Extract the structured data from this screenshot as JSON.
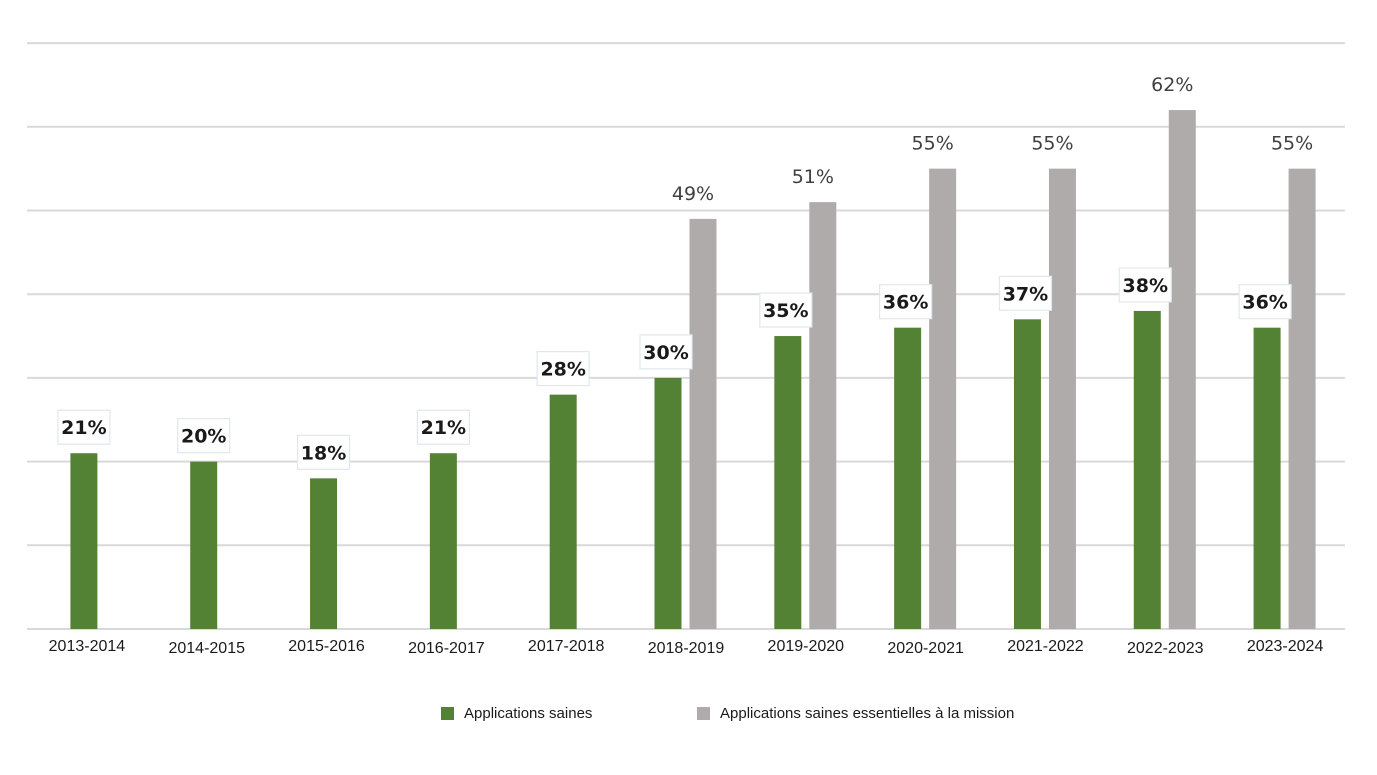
{
  "chart_data": {
    "type": "bar",
    "title": "",
    "xlabel": "",
    "ylabel": "",
    "ylim": [
      0,
      70
    ],
    "grid": true,
    "legend_position": "bottom",
    "categories": [
      "2013-2014",
      "2014-2015",
      "2015-2016",
      "2016-2017",
      "2017-2018",
      "2018-2019",
      "2019-2020",
      "2020-2021",
      "2021-2022",
      "2022-2023",
      "2023-2024"
    ],
    "series": [
      {
        "name": "Applications saines",
        "color": "#548235",
        "values": [
          21,
          20,
          18,
          21,
          28,
          30,
          35,
          36,
          37,
          38,
          36
        ],
        "labels": [
          "21%",
          "20%",
          "18%",
          "21%",
          "28%",
          "30%",
          "35%",
          "36%",
          "37%",
          "38%",
          "36%"
        ]
      },
      {
        "name": "Applications saines essentielles à la mission",
        "color": "#afabab",
        "values": [
          null,
          null,
          null,
          null,
          null,
          49,
          51,
          55,
          55,
          62,
          55
        ],
        "labels": [
          "",
          "",
          "",
          "",
          "",
          "49%",
          "51%",
          "55%",
          "55%",
          "62%",
          "55%"
        ]
      }
    ]
  }
}
